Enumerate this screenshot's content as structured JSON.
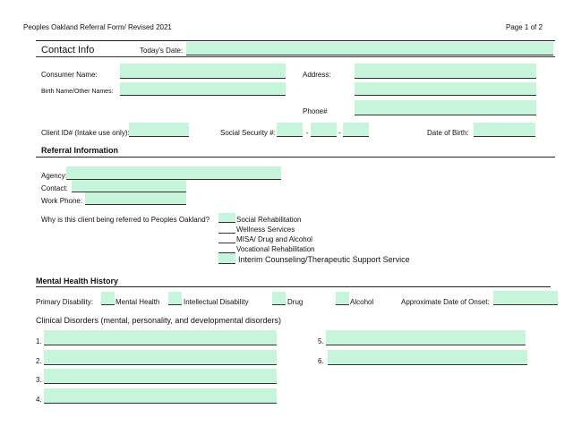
{
  "header": {
    "form_title": "Peoples Oakland Referral Form/ Revised 2021",
    "page": "Page 1 of 2"
  },
  "contact": {
    "heading": "Contact Info",
    "todays_date": "Today's Date:",
    "consumer_name": "Consumer Name:",
    "address": "Address:",
    "birth_name": "Birth Name/Other Names:",
    "phone": "Phone#",
    "client_id": "Client ID# (Intake use only):",
    "ssn": "Social Security #:",
    "ssn_dash": "-",
    "dob": "Date of Birth:"
  },
  "referral": {
    "heading": "Referral Information",
    "agency": "Agency:",
    "contact": "Contact:",
    "work_phone": "Work Phone:",
    "question": "Why is this client being referred to Peoples Oakland?",
    "options": [
      "Social Rehabilitation",
      "Wellness Services",
      "MISA/ Drug and Alcohol",
      "Vocational Rehabilitation",
      "Interim Counseling/Therapeutic Support Service"
    ]
  },
  "mental_health": {
    "heading": "Mental Health History",
    "primary_disability": "Primary Disability:",
    "disabilities": [
      "Mental Health",
      "Intellectual Disability",
      "Drug",
      "Alcohol"
    ],
    "onset": "Approximate Date of Onset:",
    "clinical": "Clinical Disorders (mental, personality, and developmental disorders)",
    "numbers": [
      "1.",
      "2.",
      "3.",
      "4.",
      "5.",
      "6."
    ]
  },
  "colors": {
    "field_fill": "#c6f5dc"
  }
}
